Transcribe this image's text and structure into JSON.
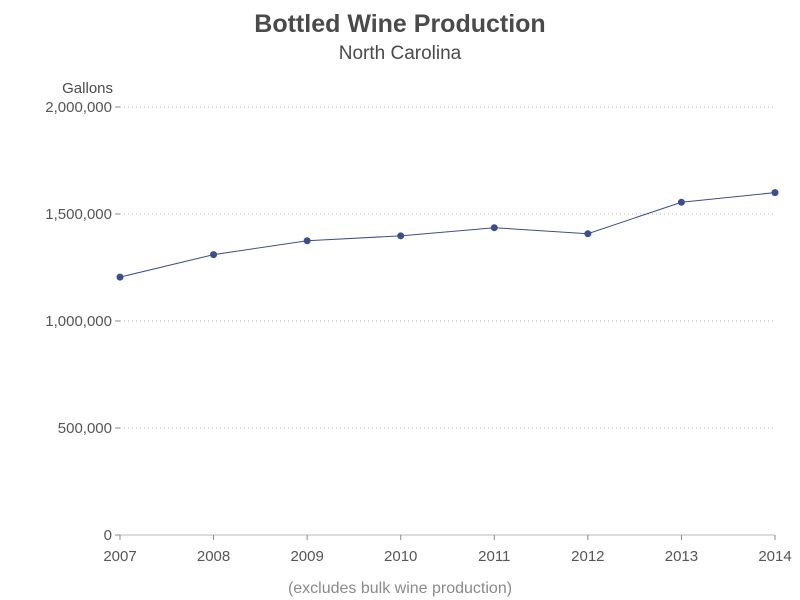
{
  "chart_data": {
    "type": "line",
    "title": "Bottled Wine Production",
    "subtitle": "North Carolina",
    "xlabel": "",
    "ylabel": "Gallons",
    "footnote": "(excludes bulk wine production)",
    "x": [
      "2007",
      "2008",
      "2009",
      "2010",
      "2011",
      "2012",
      "2013",
      "2014"
    ],
    "series": [
      {
        "values": [
          1205000,
          1310000,
          1375000,
          1398000,
          1436000,
          1408000,
          1555000,
          1600000
        ]
      }
    ],
    "ylim": [
      0,
      2000000
    ],
    "yticks": [
      0,
      500000,
      1000000,
      1500000,
      2000000
    ],
    "ytick_labels": [
      "0",
      "500,000",
      "1,000,000",
      "1,500,000",
      "2,000,000"
    ],
    "grid": true,
    "legend": "none",
    "colors": {
      "series": "#3d4f8a",
      "grid": "#b8b8b8",
      "text": "#4a4a4a"
    }
  }
}
